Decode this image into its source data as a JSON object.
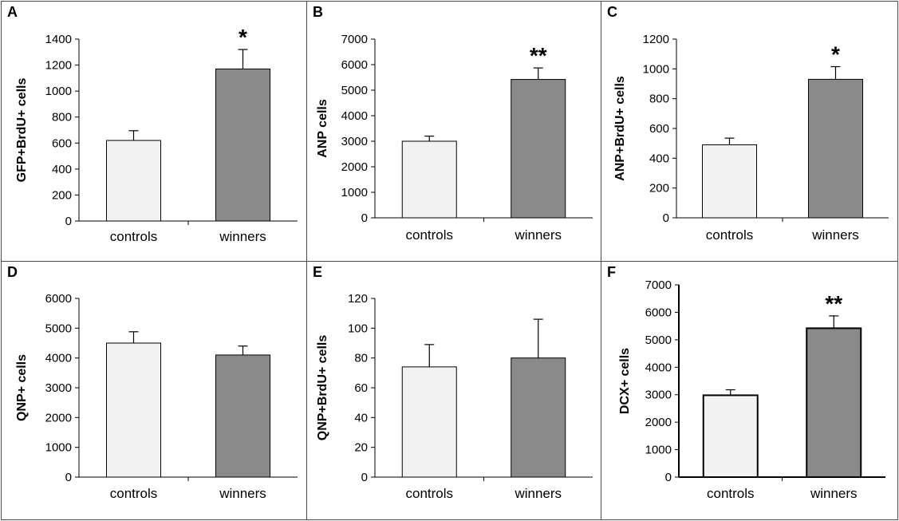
{
  "chart_data": [
    {
      "type": "bar",
      "panel_label": "A",
      "categories": [
        "controls",
        "winners"
      ],
      "values": [
        620,
        1170
      ],
      "errors": [
        75,
        150
      ],
      "ylabel": "GFP+BrdU+ cells",
      "ylim": [
        0,
        1400
      ],
      "yticks": [
        "0",
        "200",
        "400",
        "600",
        "800",
        "1000",
        "1200",
        "1400"
      ],
      "annotations": [
        "",
        "*"
      ],
      "colors": [
        "#f2f2f2",
        "#8a8a8a"
      ]
    },
    {
      "type": "bar",
      "panel_label": "B",
      "categories": [
        "controls",
        "winners"
      ],
      "values": [
        3000,
        5420
      ],
      "errors": [
        200,
        450
      ],
      "ylabel": "ANP cells",
      "ylim": [
        0,
        7000
      ],
      "yticks": [
        "0",
        "1000",
        "2000",
        "3000",
        "4000",
        "5000",
        "6000",
        "7000"
      ],
      "annotations": [
        "",
        "**"
      ],
      "colors": [
        "#f2f2f2",
        "#8a8a8a"
      ]
    },
    {
      "type": "bar",
      "panel_label": "C",
      "categories": [
        "controls",
        "winners"
      ],
      "values": [
        490,
        930
      ],
      "errors": [
        45,
        85
      ],
      "ylabel": "ANP+BrdU+ cells",
      "ylim": [
        0,
        1200
      ],
      "yticks": [
        "0",
        "200",
        "400",
        "600",
        "800",
        "1000",
        "1200"
      ],
      "annotations": [
        "",
        "*"
      ],
      "colors": [
        "#f2f2f2",
        "#8a8a8a"
      ]
    },
    {
      "type": "bar",
      "panel_label": "D",
      "categories": [
        "controls",
        "winners"
      ],
      "values": [
        4500,
        4100
      ],
      "errors": [
        380,
        300
      ],
      "ylabel": "QNP+ cells",
      "ylim": [
        0,
        6000
      ],
      "yticks": [
        "0",
        "1000",
        "2000",
        "3000",
        "4000",
        "5000",
        "6000"
      ],
      "annotations": [
        "",
        ""
      ],
      "colors": [
        "#f2f2f2",
        "#8a8a8a"
      ]
    },
    {
      "type": "bar",
      "panel_label": "E",
      "categories": [
        "controls",
        "winners"
      ],
      "values": [
        74,
        80
      ],
      "errors": [
        15,
        26
      ],
      "ylabel": "QNP+BrdU+ cells",
      "ylim": [
        0,
        120
      ],
      "yticks": [
        "0",
        "20",
        "40",
        "60",
        "80",
        "100",
        "120"
      ],
      "annotations": [
        "",
        ""
      ],
      "colors": [
        "#f2f2f2",
        "#8a8a8a"
      ]
    },
    {
      "type": "bar",
      "panel_label": "F",
      "categories": [
        "controls",
        "winners"
      ],
      "values": [
        2980,
        5420
      ],
      "errors": [
        200,
        450
      ],
      "ylabel": "DCX+ cells",
      "ylim": [
        0,
        7000
      ],
      "yticks": [
        "0",
        "1000",
        "2000",
        "3000",
        "4000",
        "5000",
        "6000",
        "7000"
      ],
      "annotations": [
        "",
        "**"
      ],
      "colors": [
        "#f2f2f2",
        "#8a8a8a"
      ]
    }
  ]
}
